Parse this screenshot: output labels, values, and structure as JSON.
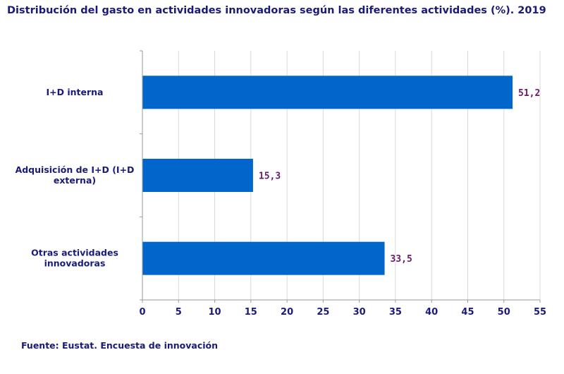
{
  "colors": {
    "bar": "#0066cc",
    "title": "#1a1a7a",
    "data_label": "#6a1b6a",
    "grid": "#d9d9d9",
    "axis": "#9a9a9a"
  },
  "chart_data": {
    "type": "bar",
    "orientation": "horizontal",
    "title": "Distribución del gasto en actividades innovadoras según las diferentes actividades (%). 2019",
    "categories": [
      [
        "I+D interna"
      ],
      [
        "Adquisición de I+D (I+D",
        "externa)"
      ],
      [
        "Otras actividades",
        "innovadoras"
      ]
    ],
    "values": [
      51.2,
      15.3,
      33.5
    ],
    "value_labels": [
      "51,2",
      "15,3",
      "33,5"
    ],
    "xlim": [
      0,
      55
    ],
    "xticks": [
      0,
      5,
      10,
      15,
      20,
      25,
      30,
      35,
      40,
      45,
      50,
      55
    ],
    "grid": true,
    "xlabel": "",
    "ylabel": ""
  },
  "source": "Fuente: Eustat. Encuesta de innovación"
}
